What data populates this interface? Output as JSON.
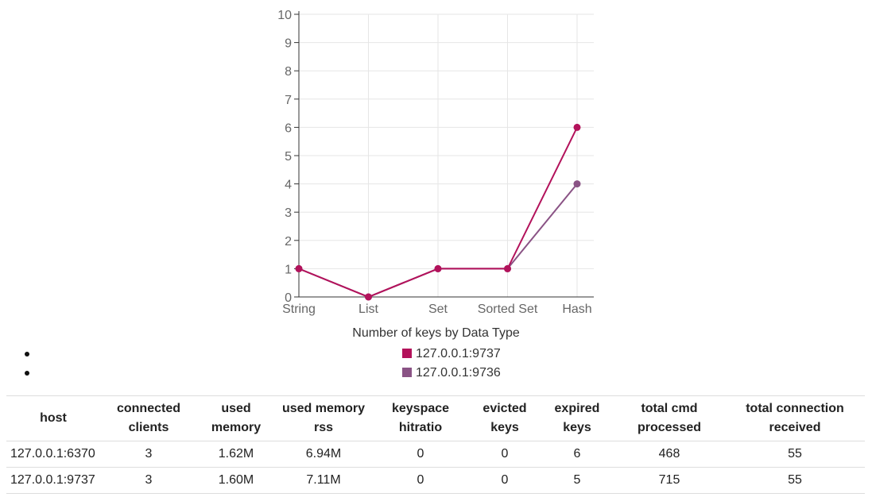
{
  "chart_data": {
    "type": "line",
    "title": "Number of keys by Data Type",
    "categories": [
      "String",
      "List",
      "Set",
      "Sorted Set",
      "Hash"
    ],
    "ylim": [
      0,
      10
    ],
    "yticks": [
      "0",
      "1",
      "2",
      "3",
      "4",
      "5",
      "6",
      "7",
      "8",
      "9",
      "10"
    ],
    "grid": true,
    "legend_placement": "bottom",
    "series": [
      {
        "name": "127.0.0.1:9737",
        "values": [
          1,
          0,
          1,
          1,
          6
        ],
        "color": "#b3125b"
      },
      {
        "name": "127.0.0.1:9736",
        "values": [
          1,
          0,
          1,
          1,
          4
        ],
        "color": "#8a5385"
      }
    ]
  },
  "table": {
    "headers": [
      [
        "host"
      ],
      [
        "connected",
        "clients"
      ],
      [
        "used",
        "memory"
      ],
      [
        "used memory",
        "rss"
      ],
      [
        "keyspace",
        "hitratio"
      ],
      [
        "evicted",
        "keys"
      ],
      [
        "expired",
        "keys"
      ],
      [
        "total cmd",
        "processed"
      ],
      [
        "total connection",
        "received"
      ]
    ],
    "rows": [
      [
        "127.0.0.1:6370",
        "3",
        "1.62M",
        "6.94M",
        "0",
        "0",
        "6",
        "468",
        "55"
      ],
      [
        "127.0.0.1:9737",
        "3",
        "1.60M",
        "7.11M",
        "0",
        "0",
        "5",
        "715",
        "55"
      ]
    ]
  }
}
